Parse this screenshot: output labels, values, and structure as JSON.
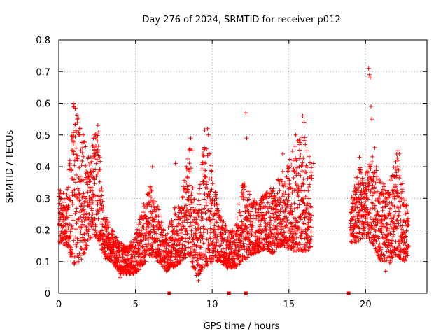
{
  "chart_data": {
    "type": "scatter",
    "title": "Day 276 of 2024, SRMTID for receiver p012",
    "xlabel": "GPS time / hours",
    "ylabel": "SRMTID / TECUs",
    "xlim": [
      0,
      24
    ],
    "ylim": [
      0,
      0.8
    ],
    "xticks": [
      0,
      5,
      10,
      15,
      20
    ],
    "yticks": [
      0,
      0.1,
      0.2,
      0.3,
      0.4,
      0.5,
      0.6,
      0.7,
      0.8
    ],
    "xtick_labels": [
      "0",
      "5",
      "10",
      "15",
      "20"
    ],
    "ytick_labels": [
      "0",
      "0.1",
      "0.2",
      "0.3",
      "0.4",
      "0.5",
      "0.6",
      "0.7",
      "0.8"
    ],
    "grid": true,
    "marker": "plus",
    "color": "#ff0000",
    "series": [
      {
        "name": "SRMTID",
        "envelope": [
          {
            "t": 0.0,
            "low": 0.16,
            "high": 0.34
          },
          {
            "t": 0.5,
            "low": 0.15,
            "high": 0.31
          },
          {
            "t": 1.0,
            "low": 0.09,
            "high": 0.6
          },
          {
            "t": 1.5,
            "low": 0.1,
            "high": 0.52
          },
          {
            "t": 2.0,
            "low": 0.17,
            "high": 0.45
          },
          {
            "t": 2.5,
            "low": 0.18,
            "high": 0.53
          },
          {
            "t": 3.0,
            "low": 0.11,
            "high": 0.25
          },
          {
            "t": 3.5,
            "low": 0.1,
            "high": 0.2
          },
          {
            "t": 4.0,
            "low": 0.06,
            "high": 0.16
          },
          {
            "t": 4.5,
            "low": 0.06,
            "high": 0.15
          },
          {
            "t": 5.0,
            "low": 0.06,
            "high": 0.18
          },
          {
            "t": 5.5,
            "low": 0.09,
            "high": 0.28
          },
          {
            "t": 6.0,
            "low": 0.12,
            "high": 0.35
          },
          {
            "t": 6.5,
            "low": 0.1,
            "high": 0.27
          },
          {
            "t": 7.0,
            "low": 0.07,
            "high": 0.18
          },
          {
            "t": 7.5,
            "low": 0.08,
            "high": 0.27
          },
          {
            "t": 8.0,
            "low": 0.1,
            "high": 0.3
          },
          {
            "t": 8.5,
            "low": 0.12,
            "high": 0.49
          },
          {
            "t": 9.0,
            "low": 0.05,
            "high": 0.24
          },
          {
            "t": 9.5,
            "low": 0.08,
            "high": 0.52
          },
          {
            "t": 10.0,
            "low": 0.1,
            "high": 0.38
          },
          {
            "t": 10.5,
            "low": 0.1,
            "high": 0.26
          },
          {
            "t": 11.0,
            "low": 0.08,
            "high": 0.2
          },
          {
            "t": 11.5,
            "low": 0.08,
            "high": 0.2
          },
          {
            "t": 12.0,
            "low": 0.1,
            "high": 0.36
          },
          {
            "t": 12.5,
            "low": 0.12,
            "high": 0.31
          },
          {
            "t": 13.0,
            "low": 0.13,
            "high": 0.29
          },
          {
            "t": 13.5,
            "low": 0.14,
            "high": 0.32
          },
          {
            "t": 14.0,
            "low": 0.12,
            "high": 0.34
          },
          {
            "t": 14.5,
            "low": 0.15,
            "high": 0.38
          },
          {
            "t": 15.0,
            "low": 0.14,
            "high": 0.42
          },
          {
            "t": 15.5,
            "low": 0.13,
            "high": 0.5
          },
          {
            "t": 16.0,
            "low": 0.13,
            "high": 0.5
          },
          {
            "t": 16.5,
            "low": 0.14,
            "high": 0.41
          },
          {
            "t": 19.0,
            "low": 0.16,
            "high": 0.28
          },
          {
            "t": 19.5,
            "low": 0.16,
            "high": 0.41
          },
          {
            "t": 20.0,
            "low": 0.18,
            "high": 0.38
          },
          {
            "t": 20.5,
            "low": 0.15,
            "high": 0.44
          },
          {
            "t": 21.0,
            "low": 0.1,
            "high": 0.36
          },
          {
            "t": 21.5,
            "low": 0.09,
            "high": 0.32
          },
          {
            "t": 22.0,
            "low": 0.12,
            "high": 0.45
          },
          {
            "t": 22.5,
            "low": 0.1,
            "high": 0.32
          },
          {
            "t": 22.8,
            "low": 0.12,
            "high": 0.26
          }
        ],
        "peaks": [
          [
            0.95,
            0.6
          ],
          [
            1.0,
            0.59
          ],
          [
            1.2,
            0.55
          ],
          [
            1.4,
            0.52
          ],
          [
            1.6,
            0.5
          ],
          [
            2.3,
            0.46
          ],
          [
            2.55,
            0.53
          ],
          [
            2.6,
            0.51
          ],
          [
            6.1,
            0.4
          ],
          [
            7.6,
            0.41
          ],
          [
            8.6,
            0.49
          ],
          [
            8.7,
            0.45
          ],
          [
            9.7,
            0.52
          ],
          [
            9.75,
            0.5
          ],
          [
            9.85,
            0.44
          ],
          [
            12.2,
            0.57
          ],
          [
            12.25,
            0.49
          ],
          [
            14.6,
            0.44
          ],
          [
            15.45,
            0.5
          ],
          [
            15.9,
            0.56
          ],
          [
            16.0,
            0.54
          ],
          [
            15.7,
            0.47
          ],
          [
            16.6,
            0.41
          ],
          [
            20.2,
            0.71
          ],
          [
            20.25,
            0.69
          ],
          [
            20.3,
            0.68
          ],
          [
            20.35,
            0.59
          ],
          [
            20.4,
            0.55
          ],
          [
            20.6,
            0.46
          ],
          [
            22.1,
            0.45
          ],
          [
            22.2,
            0.44
          ],
          [
            19.6,
            0.43
          ],
          [
            4.0,
            0.05
          ],
          [
            9.1,
            0.04
          ],
          [
            21.3,
            0.07
          ]
        ],
        "zero_markers": [
          7.2,
          11.1,
          12.2,
          18.9
        ]
      }
    ]
  }
}
